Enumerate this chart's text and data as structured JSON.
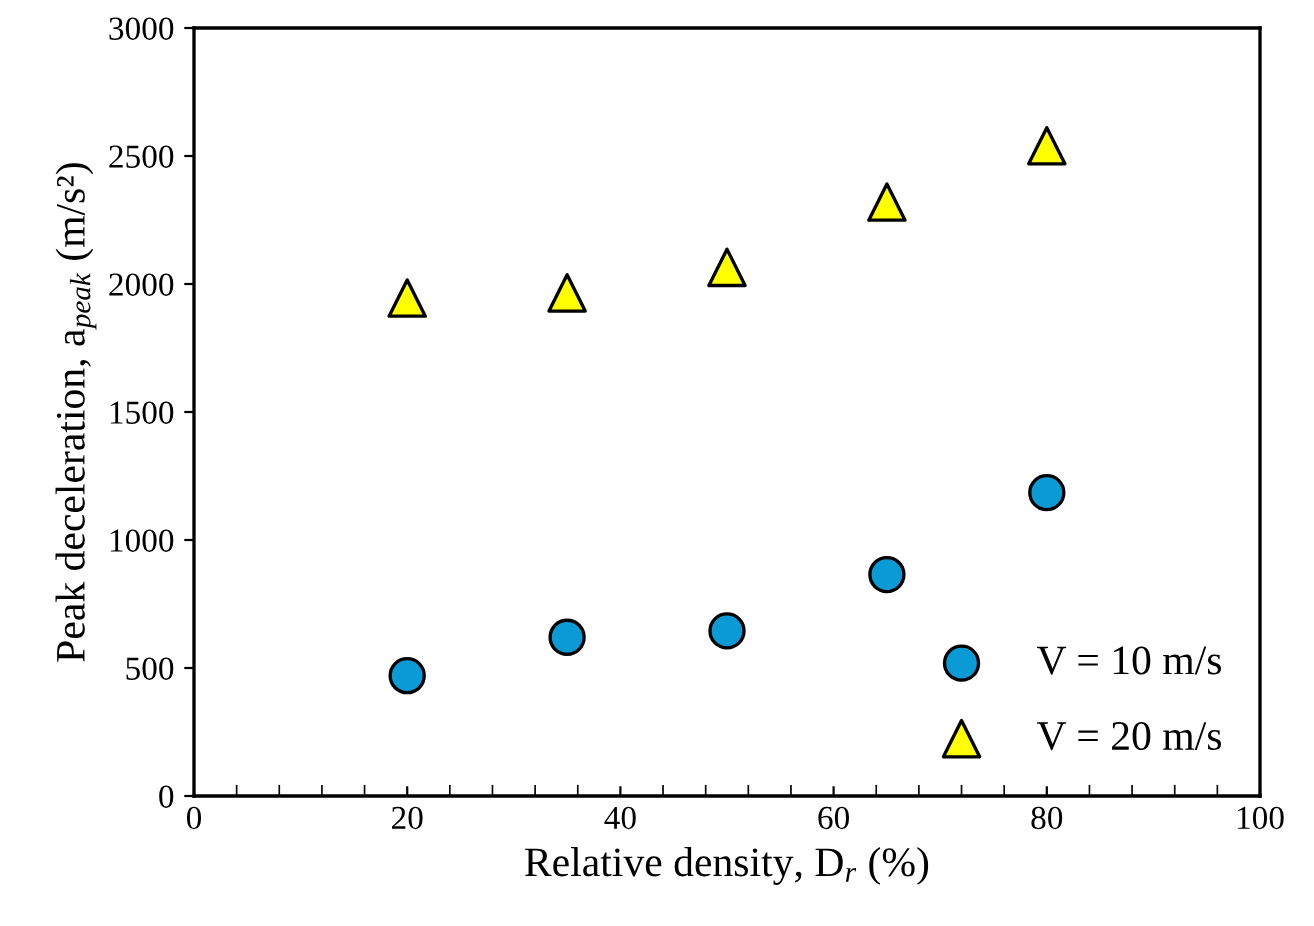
{
  "chart_data": {
    "type": "scatter",
    "xlabel": "Relative density, D$_{r}$ (%)",
    "ylabel": "Peak deceleration, a$_{peak}$ (m/s²)",
    "x": [
      20,
      35,
      50,
      65,
      80
    ],
    "series": [
      {
        "name": "V = 10 m/s",
        "color": "#0a9ad6",
        "marker": "circle",
        "values": [
          470,
          620,
          645,
          865,
          1185
        ]
      },
      {
        "name": "V = 20 m/s",
        "color": "#ffff00",
        "marker": "triangle",
        "values": [
          1945,
          1965,
          2065,
          2320,
          2540
        ]
      }
    ],
    "xlim": [
      0,
      100
    ],
    "xticks": [
      0,
      20,
      40,
      60,
      80,
      100
    ],
    "ylim": [
      0,
      3000
    ],
    "yticks": [
      0,
      500,
      1000,
      1500,
      2000,
      2500,
      3000
    ],
    "grid": false,
    "legend": "bottom right"
  }
}
